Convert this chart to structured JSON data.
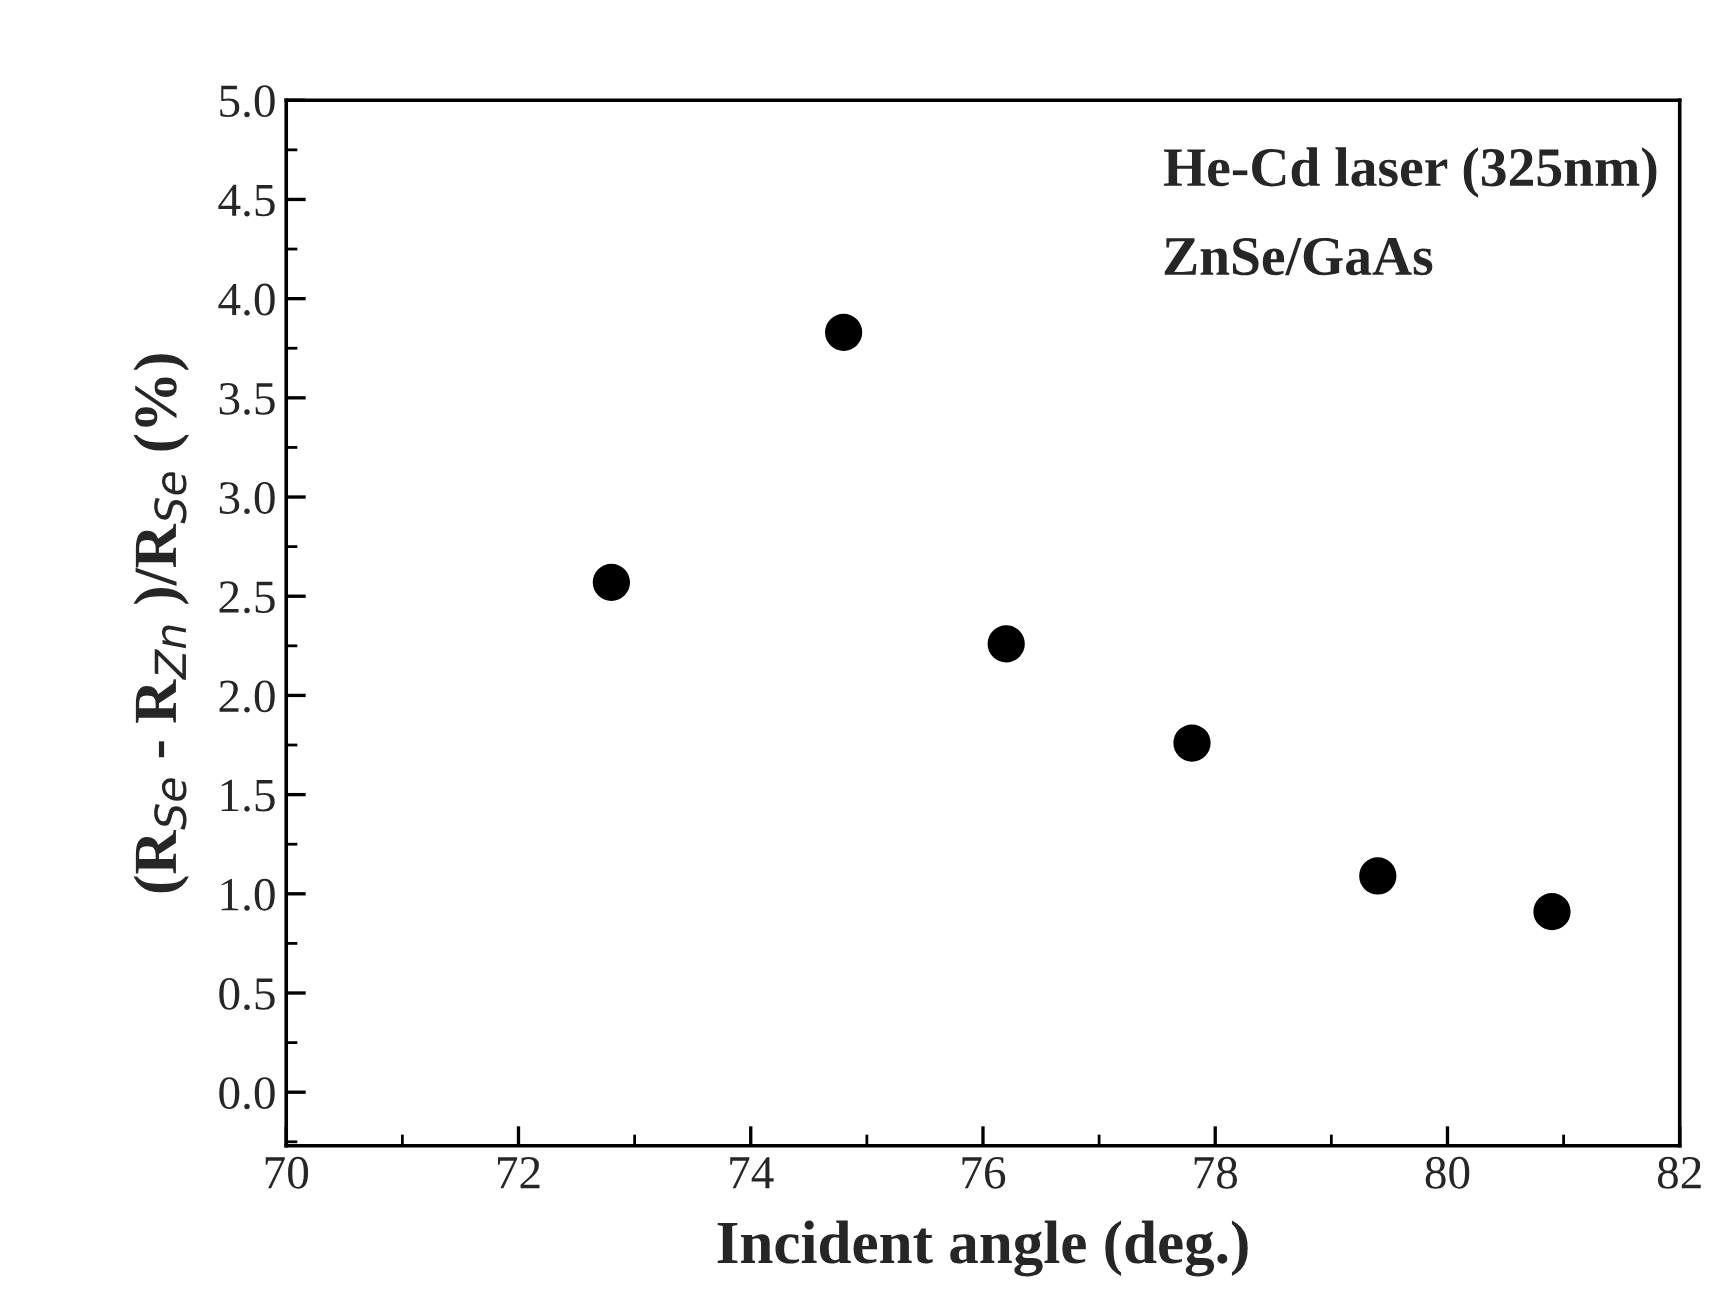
{
  "chart_data": {
    "type": "scatter",
    "xlabel": "Incident angle (deg.)",
    "ylabel": "(R$_{Se}$ - R$_{Zn}$ )/R$_{Se}$ (%)",
    "x": [
      72.8,
      74.8,
      76.2,
      77.8,
      79.4,
      80.9
    ],
    "series": [
      {
        "color": "#000000",
        "values": [
          2.57,
          3.83,
          2.26,
          1.76,
          1.09,
          0.91
        ]
      }
    ],
    "marker": "circle",
    "xlim": [
      70,
      82
    ],
    "xticks": [
      70,
      72,
      74,
      76,
      78,
      80,
      82
    ],
    "ylim": [
      -0.27,
      5.0
    ],
    "yticks": [
      {
        "value": 0,
        "label": "0.0"
      },
      0.5,
      {
        "value": 1,
        "label": "1.0"
      },
      1.5,
      {
        "value": 2,
        "label": "2.0"
      },
      2.5,
      {
        "value": 3,
        "label": "3.0"
      },
      3.5,
      {
        "value": 4,
        "label": "4.0"
      },
      4.5,
      {
        "value": 5,
        "label": "5.0"
      }
    ],
    "annotations": [
      "He-Cd laser (325nm)",
      "ZnSe/GaAs"
    ],
    "grid": false
  }
}
